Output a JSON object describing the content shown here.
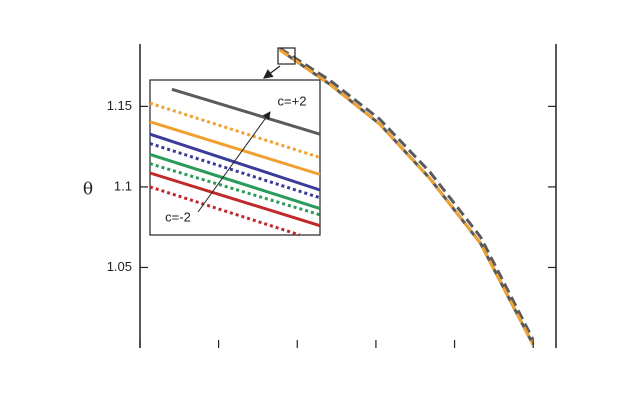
{
  "chart_data": [
    {
      "type": "line",
      "y_label": "θ",
      "x": [
        1.78,
        2.42,
        3.05,
        3.69,
        4.33,
        5.0
      ],
      "series": [
        {
          "color": "#5a5a5a",
          "style": "solid",
          "values": [
            1.185,
            1.1635,
            1.139,
            1.105,
            1.065,
            1.002
          ]
        },
        {
          "color": "#5a5a5a",
          "style": "dashed",
          "values": [
            1.186,
            1.166,
            1.142,
            1.109,
            1.069,
            1.005
          ]
        },
        {
          "color": "#f0a030",
          "style": "dashed",
          "values": [
            1.185,
            1.1635,
            1.139,
            1.105,
            1.065,
            1.002
          ]
        }
      ],
      "xlim": [
        0,
        5.29
      ],
      "ylim": [
        1.0,
        1.185
      ],
      "xticks": [
        0,
        1,
        2,
        3,
        4,
        5
      ],
      "yticks": [
        {
          "value": 1.05,
          "label": "1.05"
        },
        {
          "value": 1.1,
          "label": "1.1"
        },
        {
          "value": 1.15,
          "label": "1.15"
        }
      ]
    },
    {
      "type": "line",
      "annotations": [
        "c=+2",
        "c=-2"
      ],
      "xlim": [
        1.76,
        1.97
      ],
      "ylim": [
        1.176,
        1.186
      ],
      "series": [
        {
          "color": "#5a5a5a",
          "style": "solid",
          "x": [
            1.787,
            1.97
          ],
          "values": [
            1.1854,
            1.1825
          ]
        },
        {
          "color": "#f0a030",
          "style": "dotted",
          "x": [
            1.76,
            1.97
          ],
          "values": [
            1.1845,
            1.181
          ]
        },
        {
          "color": "#f0a030",
          "style": "solid",
          "x": [
            1.76,
            1.97
          ],
          "values": [
            1.1833,
            1.1799
          ]
        },
        {
          "color": "#3a3a9a",
          "style": "solid",
          "x": [
            1.76,
            1.97
          ],
          "values": [
            1.1825,
            1.1789
          ]
        },
        {
          "color": "#3a3a9a",
          "style": "dotted",
          "x": [
            1.76,
            1.97
          ],
          "values": [
            1.1819,
            1.1784
          ]
        },
        {
          "color": "#2a9a5a",
          "style": "solid",
          "x": [
            1.76,
            1.97
          ],
          "values": [
            1.1812,
            1.1777
          ]
        },
        {
          "color": "#2a9a5a",
          "style": "dotted",
          "x": [
            1.76,
            1.97
          ],
          "values": [
            1.1806,
            1.1773
          ]
        },
        {
          "color": "#c0282a",
          "style": "solid",
          "x": [
            1.76,
            1.97
          ],
          "values": [
            1.18,
            1.1766
          ]
        },
        {
          "color": "#c0282a",
          "style": "dotted",
          "x": [
            1.76,
            1.945
          ],
          "values": [
            1.1791,
            1.176
          ]
        }
      ]
    }
  ]
}
